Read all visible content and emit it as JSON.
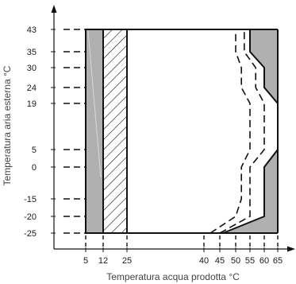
{
  "chart_data": {
    "type": "area",
    "xlabel": "Temperatura acqua prodotta °C",
    "ylabel": "Temperatura aria esterna °C",
    "x_ticks": [
      5,
      12,
      25,
      40,
      45,
      50,
      55,
      60,
      65
    ],
    "y_ticks": [
      43,
      35,
      30,
      24,
      19,
      5,
      0,
      -15,
      -20,
      -25
    ],
    "envelope": {
      "x_min": 5,
      "x_max": 65,
      "y_min": -25,
      "y_max": 43
    },
    "regions": [
      {
        "kind": "gray",
        "x": [
          5,
          12
        ],
        "y": [
          -25,
          43
        ]
      },
      {
        "kind": "hatched",
        "x": [
          12,
          25
        ],
        "y": [
          -25,
          43
        ]
      },
      {
        "kind": "gray-right",
        "boundary": [
          [
            46,
            -25
          ],
          [
            60,
            -20
          ],
          [
            60,
            0
          ],
          [
            65,
            5
          ],
          [
            65,
            19
          ],
          [
            60,
            24
          ],
          [
            60,
            30
          ],
          [
            55,
            35
          ],
          [
            55,
            43
          ]
        ]
      }
    ],
    "dashed_limits": [
      {
        "points": [
          [
            42,
            -25
          ],
          [
            50,
            -20
          ],
          [
            52,
            -15
          ],
          [
            52,
            0
          ],
          [
            55,
            5
          ],
          [
            55,
            19
          ],
          [
            52,
            24
          ],
          [
            52,
            30
          ],
          [
            50,
            35
          ],
          [
            50,
            43
          ]
        ]
      },
      {
        "points": [
          [
            45,
            -25
          ],
          [
            55,
            -20
          ],
          [
            55,
            0
          ],
          [
            60,
            5
          ],
          [
            60,
            19
          ],
          [
            57,
            24
          ],
          [
            57,
            30
          ],
          [
            53,
            35
          ],
          [
            53,
            43
          ]
        ]
      }
    ],
    "colors": {
      "shade": "#b0b0b0",
      "line": "#111111",
      "text": "#1a1a1a"
    }
  }
}
